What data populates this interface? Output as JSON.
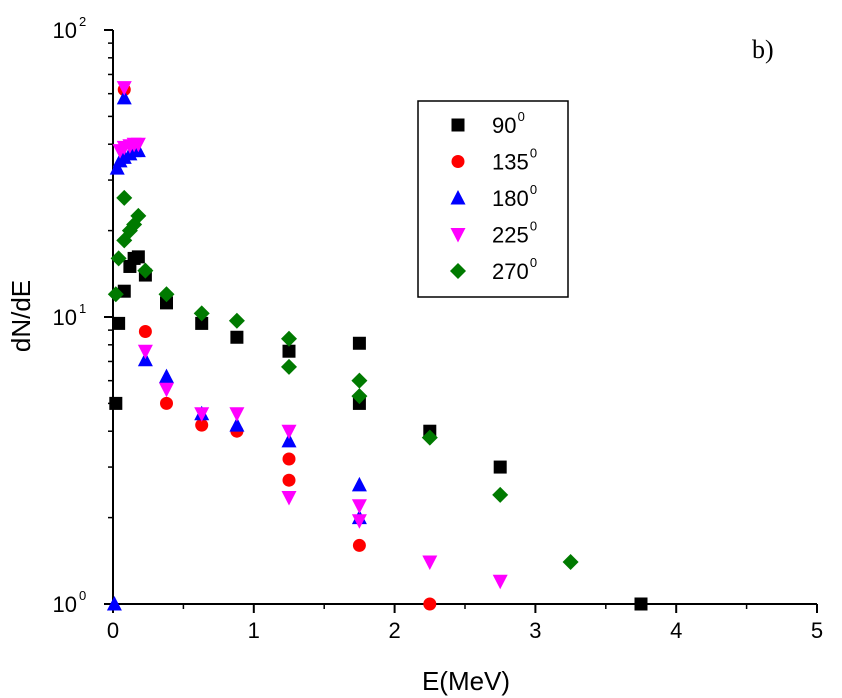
{
  "chart_data": {
    "type": "scatter",
    "panel_label": "b)",
    "xlabel": "E(MeV)",
    "ylabel": "dN/dE",
    "xlim": [
      0,
      5
    ],
    "ylim": [
      1,
      100
    ],
    "yscale": "log",
    "xticks": [
      0,
      1,
      2,
      3,
      4,
      5
    ],
    "yticks": [
      {
        "value": 1,
        "base": "10",
        "exp": "0"
      },
      {
        "value": 10,
        "base": "10",
        "exp": "1"
      },
      {
        "value": 100,
        "base": "10",
        "exp": "2"
      }
    ],
    "grid": false,
    "legend_position": "top-right",
    "series": [
      {
        "name": "90",
        "name_sup": "0",
        "marker": "square",
        "color": "#000000",
        "points": [
          [
            0.02,
            5.0
          ],
          [
            0.04,
            9.5
          ],
          [
            0.08,
            12.3
          ],
          [
            0.12,
            15.0
          ],
          [
            0.15,
            16.0
          ],
          [
            0.18,
            16.2
          ],
          [
            0.23,
            14.0
          ],
          [
            0.38,
            11.2
          ],
          [
            0.63,
            9.5
          ],
          [
            0.88,
            8.5
          ],
          [
            1.25,
            7.6
          ],
          [
            1.75,
            5.0
          ],
          [
            1.75,
            8.1
          ],
          [
            2.25,
            4.0
          ],
          [
            2.75,
            3.0
          ],
          [
            3.75,
            1.0
          ]
        ]
      },
      {
        "name": "135",
        "name_sup": "0",
        "marker": "circle",
        "color": "#ff0000",
        "points": [
          [
            0.08,
            62.0
          ],
          [
            0.23,
            8.9
          ],
          [
            0.38,
            5.0
          ],
          [
            0.63,
            4.2
          ],
          [
            0.88,
            4.0
          ],
          [
            1.25,
            3.2
          ],
          [
            1.25,
            2.7
          ],
          [
            1.75,
            1.6
          ],
          [
            2.25,
            1.0
          ]
        ]
      },
      {
        "name": "180",
        "name_sup": "0",
        "marker": "triangle-up",
        "color": "#0000ff",
        "points": [
          [
            0.01,
            1.0
          ],
          [
            0.03,
            33.0
          ],
          [
            0.05,
            35.0
          ],
          [
            0.08,
            36.0
          ],
          [
            0.08,
            58.0
          ],
          [
            0.12,
            37.0
          ],
          [
            0.15,
            38.0
          ],
          [
            0.18,
            38.0
          ],
          [
            0.23,
            7.1
          ],
          [
            0.38,
            6.2
          ],
          [
            0.63,
            4.6
          ],
          [
            0.88,
            4.2
          ],
          [
            1.25,
            3.7
          ],
          [
            1.75,
            2.6
          ],
          [
            1.75,
            2.0
          ]
        ]
      },
      {
        "name": "225",
        "name_sup": "0",
        "marker": "triangle-down",
        "color": "#ff00ff",
        "points": [
          [
            0.05,
            38.0
          ],
          [
            0.08,
            63.0
          ],
          [
            0.08,
            39.0
          ],
          [
            0.12,
            39.5
          ],
          [
            0.15,
            40.0
          ],
          [
            0.18,
            40.0
          ],
          [
            0.23,
            7.6
          ],
          [
            0.38,
            5.6
          ],
          [
            0.63,
            4.6
          ],
          [
            0.88,
            4.6
          ],
          [
            1.25,
            4.0
          ],
          [
            1.25,
            2.35
          ],
          [
            1.75,
            2.2
          ],
          [
            1.75,
            1.95
          ],
          [
            2.25,
            1.4
          ],
          [
            2.75,
            1.2
          ]
        ]
      },
      {
        "name": "270",
        "name_sup": "0",
        "marker": "diamond",
        "color": "#007a00",
        "points": [
          [
            0.02,
            12.0
          ],
          [
            0.04,
            16.0
          ],
          [
            0.08,
            18.5
          ],
          [
            0.08,
            26.0
          ],
          [
            0.12,
            20.0
          ],
          [
            0.15,
            21.0
          ],
          [
            0.18,
            22.5
          ],
          [
            0.23,
            14.5
          ],
          [
            0.38,
            12.0
          ],
          [
            0.63,
            10.3
          ],
          [
            0.88,
            9.7
          ],
          [
            1.25,
            8.4
          ],
          [
            1.25,
            6.7
          ],
          [
            1.75,
            6.0
          ],
          [
            1.75,
            5.3
          ],
          [
            2.25,
            3.8
          ],
          [
            2.75,
            2.4
          ],
          [
            3.25,
            1.4
          ]
        ]
      }
    ]
  }
}
